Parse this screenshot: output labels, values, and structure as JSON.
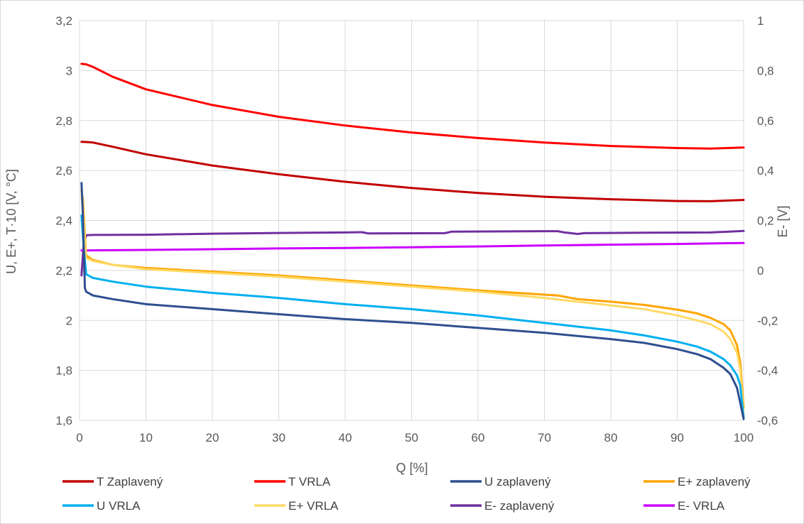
{
  "chart_data": {
    "type": "line",
    "title": "",
    "xlabel": "Q [%]",
    "ylabel": "U, E+, T·10 [V, °C]",
    "y2label": "E- [V]",
    "xlim": [
      0,
      100
    ],
    "ylim": [
      1.6,
      3.2
    ],
    "y2lim": [
      -0.6,
      1.0
    ],
    "grid": true,
    "legend_position": "bottom",
    "x_ticks": [
      "0",
      "10",
      "20",
      "30",
      "40",
      "50",
      "60",
      "70",
      "80",
      "90",
      "100"
    ],
    "y_ticks": [
      "1,6",
      "1,8",
      "2",
      "2,2",
      "2,4",
      "2,6",
      "2,8",
      "3",
      "3,2"
    ],
    "y2_ticks": [
      "-0,6",
      "-0,4",
      "-0,2",
      "0",
      "0,2",
      "0,4",
      "0,6",
      "0,8",
      "1"
    ],
    "series": [
      {
        "name": "T Zaplavený",
        "axis": "left",
        "color": "#c00000",
        "points": [
          [
            0.3,
            2.715
          ],
          [
            1,
            2.714
          ],
          [
            2,
            2.712
          ],
          [
            5,
            2.695
          ],
          [
            10,
            2.665
          ],
          [
            20,
            2.62
          ],
          [
            30,
            2.585
          ],
          [
            40,
            2.555
          ],
          [
            50,
            2.53
          ],
          [
            60,
            2.51
          ],
          [
            70,
            2.495
          ],
          [
            80,
            2.485
          ],
          [
            90,
            2.478
          ],
          [
            95,
            2.477
          ],
          [
            100,
            2.482
          ]
        ]
      },
      {
        "name": "T VRLA",
        "axis": "left",
        "color": "#ff0000",
        "points": [
          [
            0.3,
            3.027
          ],
          [
            1,
            3.025
          ],
          [
            2,
            3.015
          ],
          [
            5,
            2.975
          ],
          [
            10,
            2.925
          ],
          [
            20,
            2.862
          ],
          [
            30,
            2.815
          ],
          [
            40,
            2.78
          ],
          [
            50,
            2.752
          ],
          [
            60,
            2.73
          ],
          [
            70,
            2.712
          ],
          [
            80,
            2.698
          ],
          [
            90,
            2.69
          ],
          [
            95,
            2.688
          ],
          [
            100,
            2.692
          ]
        ]
      },
      {
        "name": "U zaplavený",
        "axis": "left",
        "color": "#2f4f8f",
        "points": [
          [
            0.3,
            2.55
          ],
          [
            0.5,
            2.42
          ],
          [
            0.8,
            2.13
          ],
          [
            1,
            2.115
          ],
          [
            2,
            2.1
          ],
          [
            5,
            2.085
          ],
          [
            10,
            2.065
          ],
          [
            20,
            2.045
          ],
          [
            30,
            2.025
          ],
          [
            40,
            2.005
          ],
          [
            50,
            1.99
          ],
          [
            60,
            1.97
          ],
          [
            70,
            1.95
          ],
          [
            80,
            1.925
          ],
          [
            85,
            1.91
          ],
          [
            90,
            1.885
          ],
          [
            93,
            1.865
          ],
          [
            95,
            1.845
          ],
          [
            97,
            1.81
          ],
          [
            98,
            1.785
          ],
          [
            99,
            1.73
          ],
          [
            99.5,
            1.67
          ],
          [
            100,
            1.605
          ]
        ]
      },
      {
        "name": "E+ zaplavený",
        "axis": "left",
        "color": "#ffa500",
        "points": [
          [
            0.3,
            2.52
          ],
          [
            0.5,
            2.48
          ],
          [
            1,
            2.26
          ],
          [
            2,
            2.242
          ],
          [
            5,
            2.222
          ],
          [
            10,
            2.21
          ],
          [
            20,
            2.195
          ],
          [
            30,
            2.18
          ],
          [
            40,
            2.16
          ],
          [
            50,
            2.14
          ],
          [
            55,
            2.13
          ],
          [
            60,
            2.12
          ],
          [
            70,
            2.103
          ],
          [
            72,
            2.1
          ],
          [
            75,
            2.085
          ],
          [
            80,
            2.075
          ],
          [
            85,
            2.062
          ],
          [
            90,
            2.043
          ],
          [
            93,
            2.028
          ],
          [
            95,
            2.01
          ],
          [
            97,
            1.985
          ],
          [
            98,
            1.96
          ],
          [
            99,
            1.9
          ],
          [
            99.5,
            1.83
          ],
          [
            100,
            1.65
          ]
        ]
      },
      {
        "name": "U VRLA",
        "axis": "left",
        "color": "#00b0f0",
        "points": [
          [
            0.3,
            2.42
          ],
          [
            0.6,
            2.3
          ],
          [
            1,
            2.185
          ],
          [
            2,
            2.17
          ],
          [
            5,
            2.155
          ],
          [
            10,
            2.135
          ],
          [
            20,
            2.11
          ],
          [
            30,
            2.09
          ],
          [
            40,
            2.065
          ],
          [
            50,
            2.045
          ],
          [
            60,
            2.02
          ],
          [
            70,
            1.99
          ],
          [
            80,
            1.96
          ],
          [
            85,
            1.94
          ],
          [
            90,
            1.915
          ],
          [
            93,
            1.895
          ],
          [
            95,
            1.875
          ],
          [
            97,
            1.845
          ],
          [
            98,
            1.82
          ],
          [
            99,
            1.78
          ],
          [
            99.5,
            1.74
          ],
          [
            100,
            1.61
          ]
        ]
      },
      {
        "name": "E+ VRLA",
        "axis": "left",
        "color": "#ffd966",
        "points": [
          [
            0.3,
            2.5
          ],
          [
            0.5,
            2.45
          ],
          [
            1,
            2.25
          ],
          [
            2,
            2.238
          ],
          [
            5,
            2.222
          ],
          [
            10,
            2.205
          ],
          [
            20,
            2.19
          ],
          [
            30,
            2.175
          ],
          [
            40,
            2.155
          ],
          [
            50,
            2.135
          ],
          [
            60,
            2.115
          ],
          [
            70,
            2.09
          ],
          [
            80,
            2.06
          ],
          [
            85,
            2.045
          ],
          [
            90,
            2.02
          ],
          [
            93,
            2.0
          ],
          [
            95,
            1.985
          ],
          [
            97,
            1.955
          ],
          [
            98,
            1.925
          ],
          [
            99,
            1.87
          ],
          [
            99.5,
            1.8
          ],
          [
            100,
            1.62
          ]
        ]
      },
      {
        "name": "E- zaplavený",
        "axis": "right",
        "color": "#7030a0",
        "points": [
          [
            0.3,
            -0.02
          ],
          [
            0.6,
            0.1
          ],
          [
            1,
            0.141
          ],
          [
            2,
            0.142
          ],
          [
            10,
            0.143
          ],
          [
            20,
            0.147
          ],
          [
            30,
            0.15
          ],
          [
            40,
            0.152
          ],
          [
            42.5,
            0.153
          ],
          [
            43.5,
            0.148
          ],
          [
            55,
            0.149
          ],
          [
            56,
            0.155
          ],
          [
            70,
            0.157
          ],
          [
            72,
            0.157
          ],
          [
            73,
            0.152
          ],
          [
            74,
            0.149
          ],
          [
            75,
            0.146
          ],
          [
            76,
            0.149
          ],
          [
            85,
            0.151
          ],
          [
            95,
            0.152
          ],
          [
            100,
            0.158
          ]
        ]
      },
      {
        "name": "E- VRLA",
        "axis": "right",
        "color": "#cc00ff",
        "points": [
          [
            0.3,
            0.08
          ],
          [
            10,
            0.082
          ],
          [
            20,
            0.085
          ],
          [
            30,
            0.088
          ],
          [
            40,
            0.09
          ],
          [
            50,
            0.093
          ],
          [
            60,
            0.096
          ],
          [
            70,
            0.1
          ],
          [
            80,
            0.103
          ],
          [
            90,
            0.106
          ],
          [
            100,
            0.11
          ]
        ]
      }
    ]
  }
}
